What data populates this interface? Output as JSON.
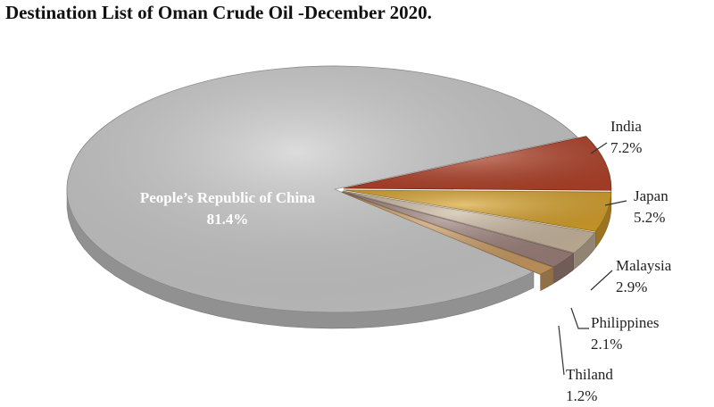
{
  "chart_data": {
    "type": "pie",
    "title": "Destination List of Oman Crude Oil -December 2020.",
    "categories": [
      "People’s Republic of China",
      "India",
      "Japan",
      "Malaysia",
      "Philippines",
      "Thiland"
    ],
    "values": [
      81.4,
      7.2,
      5.2,
      2.9,
      2.1,
      1.2
    ],
    "value_labels": [
      "81.4%",
      "7.2%",
      "5.2%",
      "2.9%",
      "2.1%",
      "1.2%"
    ],
    "colors": [
      "#c9c9c9",
      "#b2432a",
      "#d6a12c",
      "#c9b79f",
      "#9d8079",
      "#c99a62"
    ]
  }
}
